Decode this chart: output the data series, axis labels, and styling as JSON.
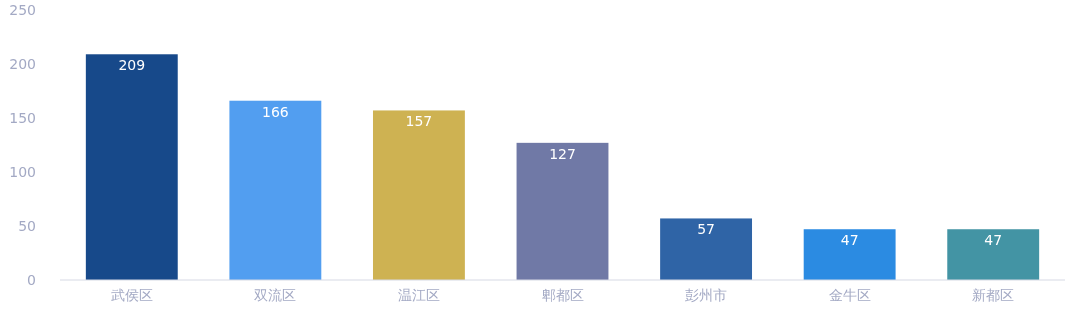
{
  "chart_data": {
    "type": "bar",
    "categories": [
      "武侯区",
      "双流区",
      "温江区",
      "郫都区",
      "彭州市",
      "金牛区",
      "新都区"
    ],
    "values": [
      209,
      166,
      157,
      127,
      57,
      47,
      47
    ],
    "colors": [
      "#17498a",
      "#529ef0",
      "#ceb252",
      "#7079a6",
      "#2f64a6",
      "#2b8be2",
      "#4394a4"
    ],
    "ylim": [
      0,
      250
    ],
    "yticks": [
      0,
      50,
      100,
      150,
      200,
      250
    ],
    "data_labels": true
  }
}
